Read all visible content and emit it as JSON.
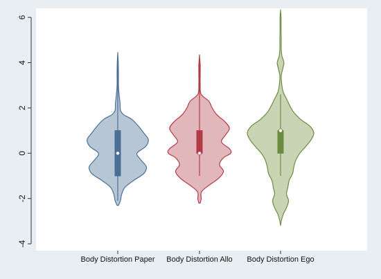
{
  "chart_data": {
    "type": "violin",
    "title": "",
    "xlabel": "",
    "ylabel": "",
    "ylim": [
      -4.3,
      6.4
    ],
    "yticks": [
      -4,
      -2,
      0,
      2,
      4,
      6
    ],
    "ytick_labels": [
      "-4",
      "-2",
      "0",
      "2",
      "4",
      "6"
    ],
    "grid": false,
    "legend": false,
    "categories": [
      "Body Distortion Paper",
      "Body Distortion Allo",
      "Body Distortion Ego"
    ],
    "series": [
      {
        "category": "Body Distortion Paper",
        "color": "#4a6f94",
        "fill": "#a9bccd",
        "median": 0,
        "q1": -1,
        "q3": 1,
        "whisker_low": -2.1,
        "whisker_high": 4.4,
        "density": [
          [
            -2.3,
            0.02
          ],
          [
            -2.1,
            0.08
          ],
          [
            -1.8,
            0.12
          ],
          [
            -1.5,
            0.22
          ],
          [
            -1.2,
            0.48
          ],
          [
            -0.9,
            0.78
          ],
          [
            -0.6,
            0.86
          ],
          [
            -0.3,
            0.7
          ],
          [
            0.0,
            0.58
          ],
          [
            0.3,
            0.84
          ],
          [
            0.6,
            0.92
          ],
          [
            0.9,
            0.78
          ],
          [
            1.2,
            0.62
          ],
          [
            1.5,
            0.42
          ],
          [
            1.7,
            0.18
          ],
          [
            1.9,
            0.08
          ],
          [
            2.2,
            0.07
          ],
          [
            2.6,
            0.04
          ],
          [
            3.0,
            0.02
          ],
          [
            3.5,
            0.02
          ],
          [
            4.0,
            0.015
          ],
          [
            4.4,
            0.0
          ]
        ]
      },
      {
        "category": "Body Distortion Allo",
        "color": "#b23a45",
        "fill": "#ddaab0",
        "median": 0,
        "q1": 0,
        "q3": 1,
        "whisker_low": -1,
        "whisker_high": 4.3,
        "density": [
          [
            -2.2,
            0.02
          ],
          [
            -2.0,
            0.05
          ],
          [
            -1.7,
            0.06
          ],
          [
            -1.4,
            0.3
          ],
          [
            -1.1,
            0.58
          ],
          [
            -0.8,
            0.72
          ],
          [
            -0.5,
            0.6
          ],
          [
            -0.2,
            0.72
          ],
          [
            0.0,
            0.94
          ],
          [
            0.2,
            0.9
          ],
          [
            0.5,
            0.66
          ],
          [
            0.8,
            0.78
          ],
          [
            1.1,
            0.9
          ],
          [
            1.4,
            0.76
          ],
          [
            1.7,
            0.52
          ],
          [
            2.0,
            0.38
          ],
          [
            2.3,
            0.28
          ],
          [
            2.6,
            0.05
          ],
          [
            3.0,
            0.02
          ],
          [
            3.5,
            0.02
          ],
          [
            3.9,
            0.02
          ],
          [
            4.3,
            0.0
          ]
        ]
      },
      {
        "category": "Body Distortion Ego",
        "color": "#6b8b3e",
        "fill": "#c0cda8",
        "median": 1,
        "q1": 0,
        "q3": 1,
        "whisker_low": -1,
        "whisker_high": 2.6,
        "density": [
          [
            -3.2,
            0.0
          ],
          [
            -3.0,
            0.02
          ],
          [
            -2.7,
            0.08
          ],
          [
            -2.4,
            0.18
          ],
          [
            -2.1,
            0.24
          ],
          [
            -1.8,
            0.18
          ],
          [
            -1.5,
            0.22
          ],
          [
            -1.2,
            0.26
          ],
          [
            -0.9,
            0.36
          ],
          [
            -0.6,
            0.4
          ],
          [
            -0.3,
            0.46
          ],
          [
            0.0,
            0.58
          ],
          [
            0.3,
            0.76
          ],
          [
            0.6,
            0.92
          ],
          [
            0.9,
            1.0
          ],
          [
            1.2,
            0.88
          ],
          [
            1.5,
            0.6
          ],
          [
            1.8,
            0.4
          ],
          [
            2.1,
            0.28
          ],
          [
            2.4,
            0.18
          ],
          [
            2.7,
            0.08
          ],
          [
            3.0,
            0.04
          ],
          [
            3.4,
            0.02
          ],
          [
            3.7,
            0.06
          ],
          [
            4.0,
            0.1
          ],
          [
            4.3,
            0.04
          ],
          [
            4.6,
            0.02
          ],
          [
            5.0,
            0.02
          ],
          [
            5.5,
            0.015
          ],
          [
            6.0,
            0.015
          ],
          [
            6.3,
            0.0
          ]
        ]
      }
    ]
  }
}
